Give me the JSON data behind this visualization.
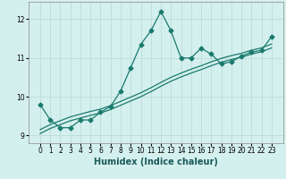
{
  "xlabel": "Humidex (Indice chaleur)",
  "bg_color": "#d4f0ee",
  "grid_color": "#b8d8d4",
  "line_color": "#1a7a6e",
  "x_data": [
    0,
    1,
    2,
    3,
    4,
    5,
    6,
    7,
    8,
    9,
    10,
    11,
    12,
    13,
    14,
    15,
    16,
    17,
    18,
    19,
    20,
    21,
    22,
    23
  ],
  "y_main": [
    9.8,
    9.4,
    9.2,
    9.2,
    9.4,
    9.4,
    9.6,
    9.75,
    10.15,
    10.75,
    11.35,
    11.7,
    12.2,
    11.7,
    11.0,
    11.0,
    11.25,
    11.1,
    10.85,
    10.9,
    11.05,
    11.15,
    11.2,
    11.55
  ],
  "y_trend1": [
    9.15,
    9.28,
    9.38,
    9.48,
    9.55,
    9.62,
    9.68,
    9.77,
    9.88,
    9.99,
    10.1,
    10.23,
    10.37,
    10.5,
    10.61,
    10.71,
    10.8,
    10.9,
    10.99,
    11.06,
    11.12,
    11.2,
    11.26,
    11.36
  ],
  "y_trend2": [
    9.05,
    9.18,
    9.28,
    9.38,
    9.45,
    9.52,
    9.58,
    9.67,
    9.78,
    9.89,
    10.0,
    10.13,
    10.27,
    10.4,
    10.51,
    10.61,
    10.7,
    10.8,
    10.89,
    10.96,
    11.02,
    11.1,
    11.16,
    11.26
  ],
  "ylim": [
    8.8,
    12.45
  ],
  "yticks": [
    9,
    10,
    11,
    12
  ],
  "marker": "D",
  "markersize": 2.5,
  "linewidth": 0.9,
  "tick_fontsize": 5.5,
  "xlabel_fontsize": 7
}
